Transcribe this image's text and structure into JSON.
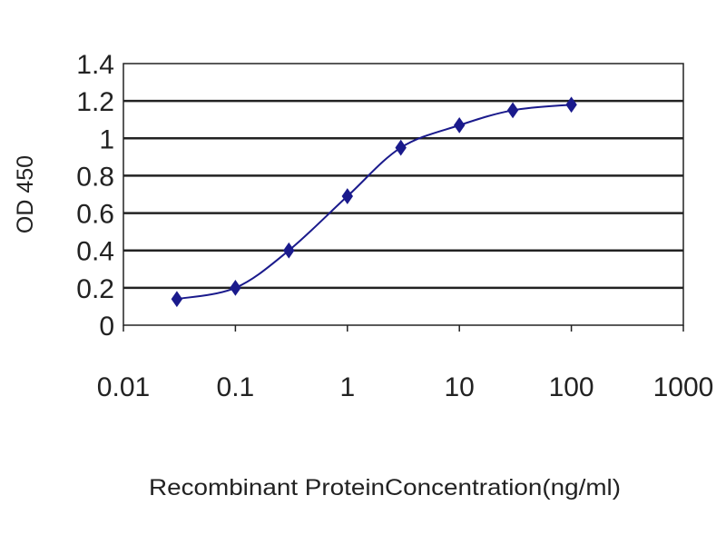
{
  "chart_data": {
    "type": "line",
    "title": "",
    "xlabel": "Recombinant ProteinConcentration(ng/ml)",
    "ylabel": "OD 450",
    "x_scale": "log",
    "xlim": [
      0.01,
      1000
    ],
    "ylim": [
      0,
      1.4
    ],
    "x_ticks": [
      "0.01",
      "0.1",
      "1",
      "10",
      "100",
      "1000"
    ],
    "y_ticks": [
      "0",
      "0.2",
      "0.4",
      "0.6",
      "0.8",
      "1",
      "1.2",
      "1.4"
    ],
    "grid": "horizontal",
    "legend": "none",
    "series": [
      {
        "color": "#1a1a8c",
        "marker": "diamond",
        "x": [
          0.03,
          0.1,
          0.3,
          1,
          3,
          10,
          30,
          100
        ],
        "y": [
          0.14,
          0.2,
          0.4,
          0.69,
          0.95,
          1.07,
          1.15,
          1.18
        ]
      }
    ]
  }
}
